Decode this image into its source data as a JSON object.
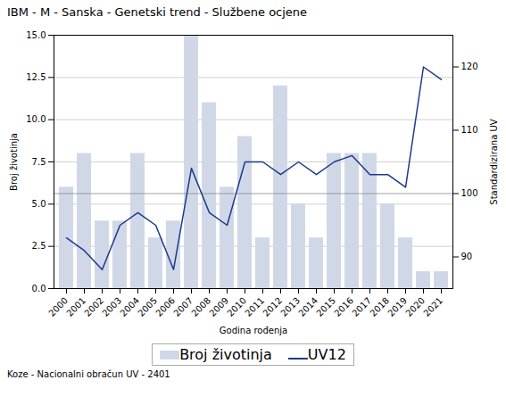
{
  "chart_data": {
    "type": "bar",
    "title": "IBM - M - Sanska - Genetski trend - Službene ocjene",
    "xlabel": "Godina rođenja",
    "ylabel": "Broj životinja",
    "y2label": "Standardizirana UV",
    "caption": "Koze - Nacionalni obračun UV - 2401",
    "categories": [
      "2000",
      "2001",
      "2002",
      "2003",
      "2004",
      "2005",
      "2006",
      "2007",
      "2008",
      "2009",
      "2010",
      "2011",
      "2012",
      "2013",
      "2014",
      "2015",
      "2016",
      "2017",
      "2018",
      "2019",
      "2020",
      "2021"
    ],
    "series": [
      {
        "name": "Broj životinja",
        "type": "bar",
        "color": "#d0d8e8",
        "values": [
          6,
          8,
          4,
          4,
          8,
          3,
          4,
          15,
          11,
          6,
          9,
          3,
          12,
          5,
          3,
          8,
          8,
          8,
          5,
          3,
          1,
          1
        ]
      },
      {
        "name": "UV12",
        "type": "line",
        "axis": "y2",
        "color": "#1a3a8a",
        "values": [
          93,
          91,
          88,
          95,
          97,
          95,
          88,
          104,
          97,
          95,
          105,
          105,
          103,
          105,
          103,
          105,
          106,
          103,
          103,
          101,
          120,
          118
        ]
      }
    ],
    "ylim": [
      0,
      15
    ],
    "yticks": [
      {
        "value": 0,
        "label": "0.0"
      },
      2.5,
      {
        "value": 5,
        "label": "5.0"
      },
      7.5,
      {
        "value": 10,
        "label": "10.0"
      },
      12.5,
      {
        "value": 15,
        "label": "15.0"
      }
    ],
    "y2lim": [
      85,
      125
    ],
    "y2ticks": [
      90,
      100,
      110,
      120
    ],
    "reference_line": {
      "axis": "y2",
      "value": 100,
      "color": "#888888"
    },
    "grid": true,
    "legend": "bottom"
  }
}
